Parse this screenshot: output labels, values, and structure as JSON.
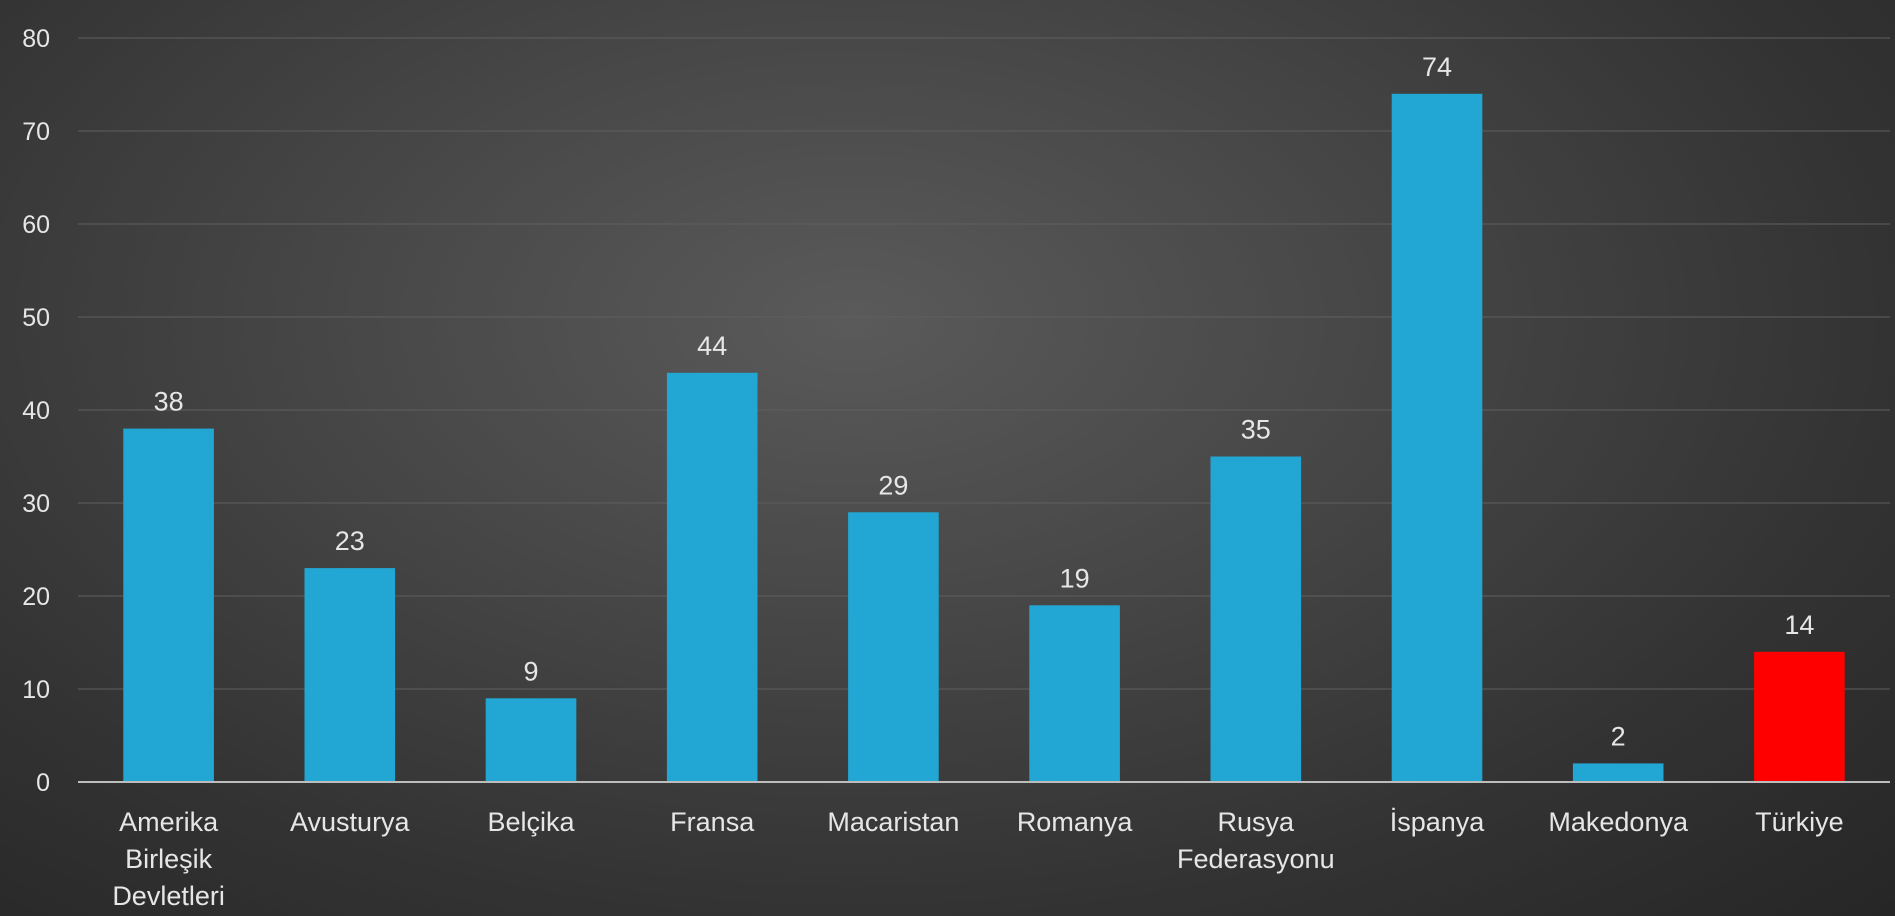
{
  "chart_data": {
    "type": "bar",
    "title": "",
    "xlabel": "",
    "ylabel": "",
    "ylim": [
      0,
      80
    ],
    "yticks": [
      0,
      10,
      20,
      30,
      40,
      50,
      60,
      70,
      80
    ],
    "grid": true,
    "legend": "none",
    "categories": [
      [
        "Amerika",
        "Birleşik",
        "Devletleri"
      ],
      [
        "Avusturya"
      ],
      [
        "Belçika"
      ],
      [
        "Fransa"
      ],
      [
        "Macaristan"
      ],
      [
        "Romanya"
      ],
      [
        "Rusya",
        "Federasyonu"
      ],
      [
        "İspanya"
      ],
      [
        "Makedonya"
      ],
      [
        "Türkiye"
      ]
    ],
    "values": [
      38,
      23,
      9,
      44,
      29,
      19,
      35,
      74,
      2,
      14
    ],
    "data_labels": [
      "38",
      "23",
      "9",
      "44",
      "29",
      "19",
      "35",
      "74",
      "2",
      "14"
    ],
    "colors": {
      "default": "#22a7d4",
      "highlight": "#ff0000",
      "gridline": "#5f5f5f",
      "axis_line": "#bdbdbd",
      "text": "#e6e6e6"
    },
    "highlight_category_index": 9
  }
}
